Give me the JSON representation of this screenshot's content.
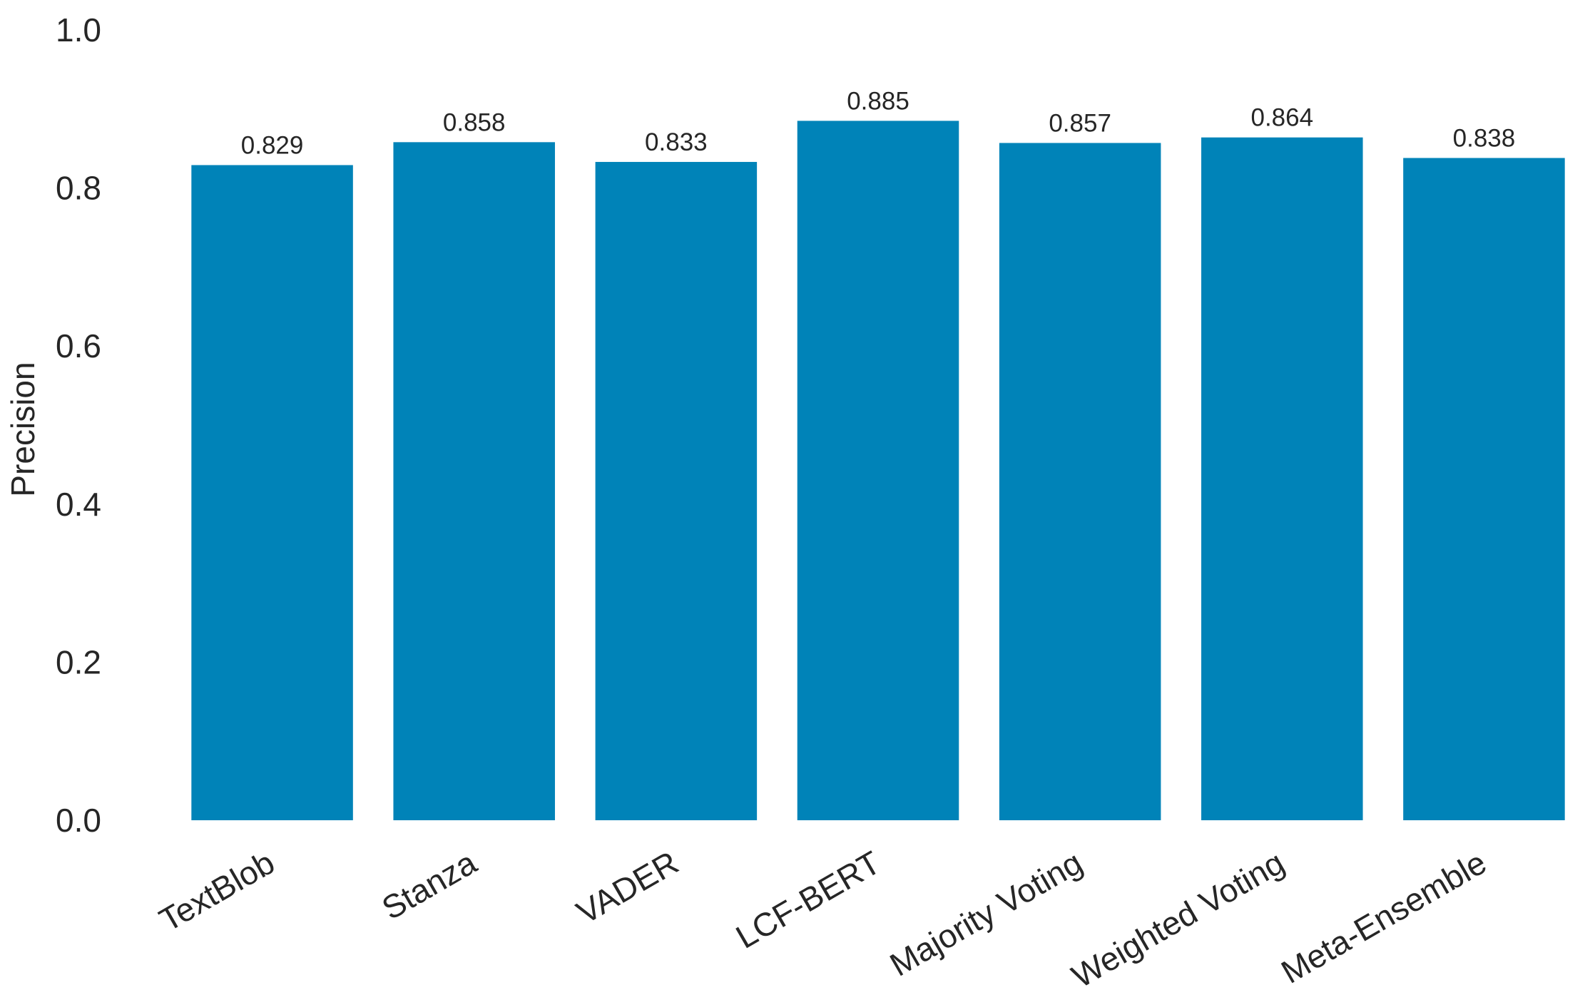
{
  "chart_data": {
    "type": "bar",
    "title": "",
    "xlabel": "",
    "ylabel": "Precision",
    "ylim": [
      0,
      1.0
    ],
    "yticks": [
      "0.0",
      "0.2",
      "0.4",
      "0.6",
      "0.8",
      "1.0"
    ],
    "grid": false,
    "categories": [
      "TextBlob",
      "Stanza",
      "VADER",
      "LCF-BERT",
      "Majority Voting",
      "Weighted Voting",
      "Meta-Ensemble"
    ],
    "values": [
      0.829,
      0.858,
      0.833,
      0.885,
      0.857,
      0.864,
      0.838
    ],
    "value_labels": [
      "0.829",
      "0.858",
      "0.833",
      "0.885",
      "0.857",
      "0.864",
      "0.838"
    ],
    "bar_color": "#0083b8",
    "xtick_rotation_deg": -30
  }
}
